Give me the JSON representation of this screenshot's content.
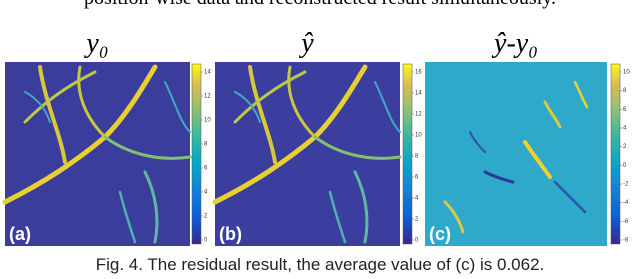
{
  "header": {
    "text": "position-wise data and reconstructed result simultaneously."
  },
  "panels": [
    {
      "title": "y₀",
      "label": "(a)",
      "colorbar_ticks": [
        14,
        12,
        10,
        8,
        6,
        4,
        2,
        0
      ]
    },
    {
      "title": "ŷ",
      "label": "(b)",
      "colorbar_ticks": [
        16,
        14,
        12,
        10,
        8,
        6,
        4,
        2,
        0
      ]
    },
    {
      "title": "ŷ-y₀",
      "label": "(c)",
      "colorbar_ticks": [
        10,
        8,
        6,
        4,
        2,
        0,
        -2,
        -4,
        -6,
        -8
      ]
    }
  ],
  "caption": "Fig. 4. The residual result, the average value of (c) is 0.062."
}
